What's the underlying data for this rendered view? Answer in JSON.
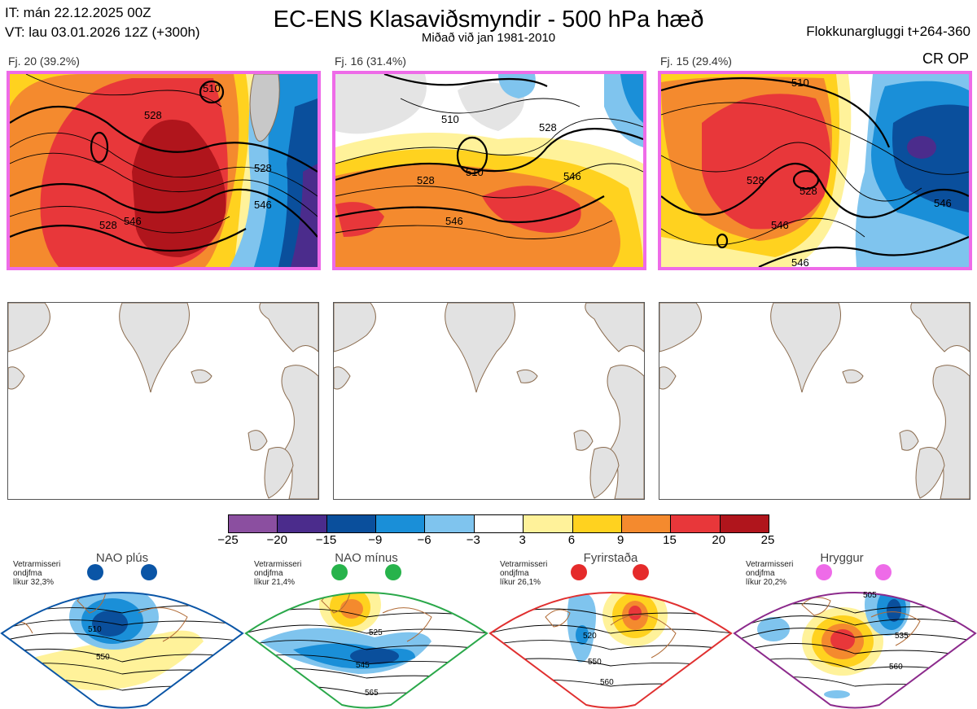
{
  "header": {
    "it_line": "IT: mán 22.12.2025 00Z",
    "vt_line": "VT: lau 03.01.2026 12Z  (+300h)",
    "title": "EC-ENS Klasaviðsmyndir - 500 hPa hæð",
    "subtitle": "Miðað við jan 1981-2010",
    "window": "Flokkunargluggi t+264-360",
    "regime_code": "CR OP"
  },
  "clusters": [
    {
      "label": "Fj. 20 (39.2%)",
      "contours": [
        "510",
        "528",
        "528",
        "546",
        "528",
        "546"
      ]
    },
    {
      "label": "Fj. 16 (31.4%)",
      "contours": [
        "510",
        "528",
        "528",
        "510",
        "546",
        "546"
      ]
    },
    {
      "label": "Fj. 15 (29.4%)",
      "contours": [
        "510",
        "528",
        "528",
        "546",
        "546",
        "546"
      ]
    }
  ],
  "colorbar": {
    "ticks": [
      "−25",
      "−20",
      "−15",
      "−9",
      "−6",
      "−3",
      "3",
      "6",
      "9",
      "15",
      "20",
      "25"
    ],
    "colors": [
      "#8b4fa0",
      "#4b2c8c",
      "#0a4f9c",
      "#1a8fd8",
      "#7fc4ee",
      "#ffffff",
      "#fff29a",
      "#ffd21f",
      "#f48a2e",
      "#e8373a",
      "#b0151c"
    ]
  },
  "regimes": [
    {
      "title": "NAO plús",
      "note": [
        "Vetrarmisseri",
        "ondjfma",
        "líkur 32,3%"
      ],
      "dot_color": "#0a55a6",
      "frame_color": "#0a55a6",
      "contours": [
        "510",
        "550"
      ]
    },
    {
      "title": "NAO mínus",
      "note": [
        "Vetrarmisseri",
        "ondjfma",
        "líkur 21,4%"
      ],
      "dot_color": "#27b34b",
      "frame_color": "#2aa84a",
      "contours": [
        "525",
        "545",
        "565"
      ]
    },
    {
      "title": "Fyrirstaða",
      "note": [
        "Vetrarmisseri",
        "ondjfma",
        "líkur 26,1%"
      ],
      "dot_color": "#e52b2b",
      "frame_color": "#e03030",
      "contours": [
        "520",
        "550",
        "560"
      ]
    },
    {
      "title": "Hryggur",
      "note": [
        "Vetrarmisseri",
        "ondjfma",
        "líkur 20,2%"
      ],
      "dot_color": "#ee6be8",
      "frame_color": "#8c2a8c",
      "contours": [
        "505",
        "535",
        "560"
      ]
    }
  ]
}
